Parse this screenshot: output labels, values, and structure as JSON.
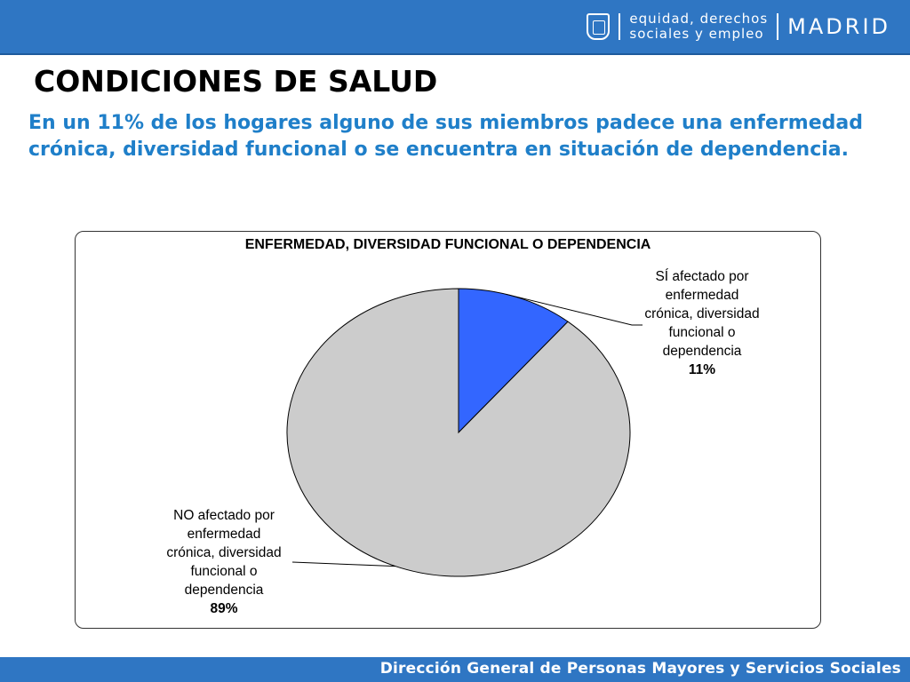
{
  "header": {
    "dept_line1": "equidad, derechos",
    "dept_line2": "sociales y empleo",
    "city": "MADRID"
  },
  "title": "CONDICIONES DE SALUD",
  "subtitle": "En un 11% de los hogares alguno de sus miembros padece una enfermedad crónica, diversidad funcional o se encuentra en situación de dependencia.",
  "chart_data": {
    "type": "pie",
    "title": "ENFERMEDAD, DIVERSIDAD FUNCIONAL O DEPENDENCIA",
    "slices": [
      {
        "label_lines": [
          "SÍ afectado por",
          "enfermedad",
          "crónica, diversidad",
          "funcional o",
          "dependencia"
        ],
        "value": 11,
        "pct_label": "11%",
        "color": "#3366ff"
      },
      {
        "label_lines": [
          "NO afectado por",
          "enfermedad",
          "crónica, diversidad",
          "funcional o",
          "dependencia"
        ],
        "value": 89,
        "pct_label": "89%",
        "color": "#cccccc"
      }
    ]
  },
  "footer": "Dirección General de Personas Mayores y Servicios Sociales"
}
